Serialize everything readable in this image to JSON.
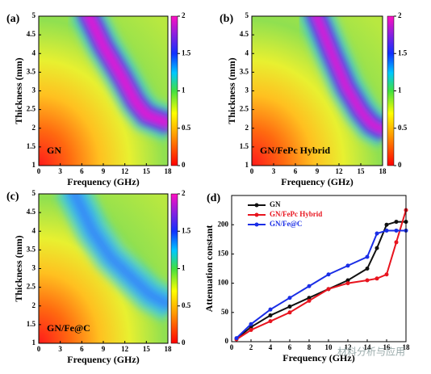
{
  "chart_data": [
    {
      "type": "heatmap",
      "panel_label": "(a)",
      "label": "GN",
      "xlabel": "Frequency (GHz)",
      "ylabel": "Thickness (mm)",
      "xlim": [
        0,
        18
      ],
      "xticks": [
        0,
        3,
        6,
        9,
        12,
        15,
        18
      ],
      "ylim": [
        1,
        5
      ],
      "yticks": [
        1,
        1.5,
        2,
        2.5,
        3,
        3.5,
        4,
        4.5,
        5
      ],
      "zlim": [
        0,
        2
      ],
      "zticks": [
        0,
        0.5,
        1,
        1.5,
        2
      ]
    },
    {
      "type": "heatmap",
      "panel_label": "(b)",
      "label": "GN/FePc Hybrid",
      "xlabel": "Frequency (GHz)",
      "ylabel": "Thickness (mm)",
      "xlim": [
        0,
        18
      ],
      "xticks": [
        0,
        3,
        6,
        9,
        12,
        15,
        18
      ],
      "ylim": [
        1,
        5
      ],
      "yticks": [
        1,
        1.5,
        2,
        2.5,
        3,
        3.5,
        4,
        4.5,
        5
      ],
      "zlim": [
        0,
        2
      ],
      "zticks": [
        0,
        0.5,
        1,
        1.5,
        2
      ]
    },
    {
      "type": "heatmap",
      "panel_label": "(c)",
      "label": "GN/Fe@C",
      "xlabel": "Frequency (GHz)",
      "ylabel": "Thickness (mm)",
      "xlim": [
        0,
        18
      ],
      "xticks": [
        0,
        3,
        6,
        9,
        12,
        15,
        18
      ],
      "ylim": [
        1,
        5
      ],
      "yticks": [
        1,
        1.5,
        2,
        2.5,
        3,
        3.5,
        4,
        4.5,
        5
      ],
      "zlim": [
        0,
        2
      ],
      "zticks": [
        0,
        0.5,
        1,
        1.5,
        2
      ]
    },
    {
      "type": "line",
      "panel_label": "(d)",
      "xlabel": "Frequency (GHz)",
      "ylabel": "Attenuation constant",
      "xlim": [
        0,
        18
      ],
      "xticks": [
        0,
        2,
        4,
        6,
        8,
        10,
        12,
        14,
        16,
        18
      ],
      "ylim": [
        0,
        250
      ],
      "yticks": [
        0,
        50,
        100,
        150,
        200
      ],
      "legend": "upper left",
      "x": [
        0.5,
        2,
        4,
        6,
        8,
        10,
        12,
        14,
        15,
        16,
        17,
        18
      ],
      "series": [
        {
          "name": "GN",
          "color": "#111111",
          "values": [
            5,
            25,
            45,
            60,
            75,
            90,
            105,
            125,
            160,
            200,
            205,
            205
          ]
        },
        {
          "name": "GN/FePc Hybrid",
          "color": "#e8141e",
          "values": [
            4,
            20,
            35,
            50,
            70,
            90,
            100,
            105,
            108,
            115,
            170,
            225
          ]
        },
        {
          "name": "GN/Fe@C",
          "color": "#1a2ee6",
          "values": [
            6,
            30,
            55,
            75,
            95,
            115,
            130,
            145,
            185,
            190,
            190,
            190
          ]
        }
      ]
    },
    {
      "type": "watermark",
      "text": "材料分析与应用"
    }
  ]
}
